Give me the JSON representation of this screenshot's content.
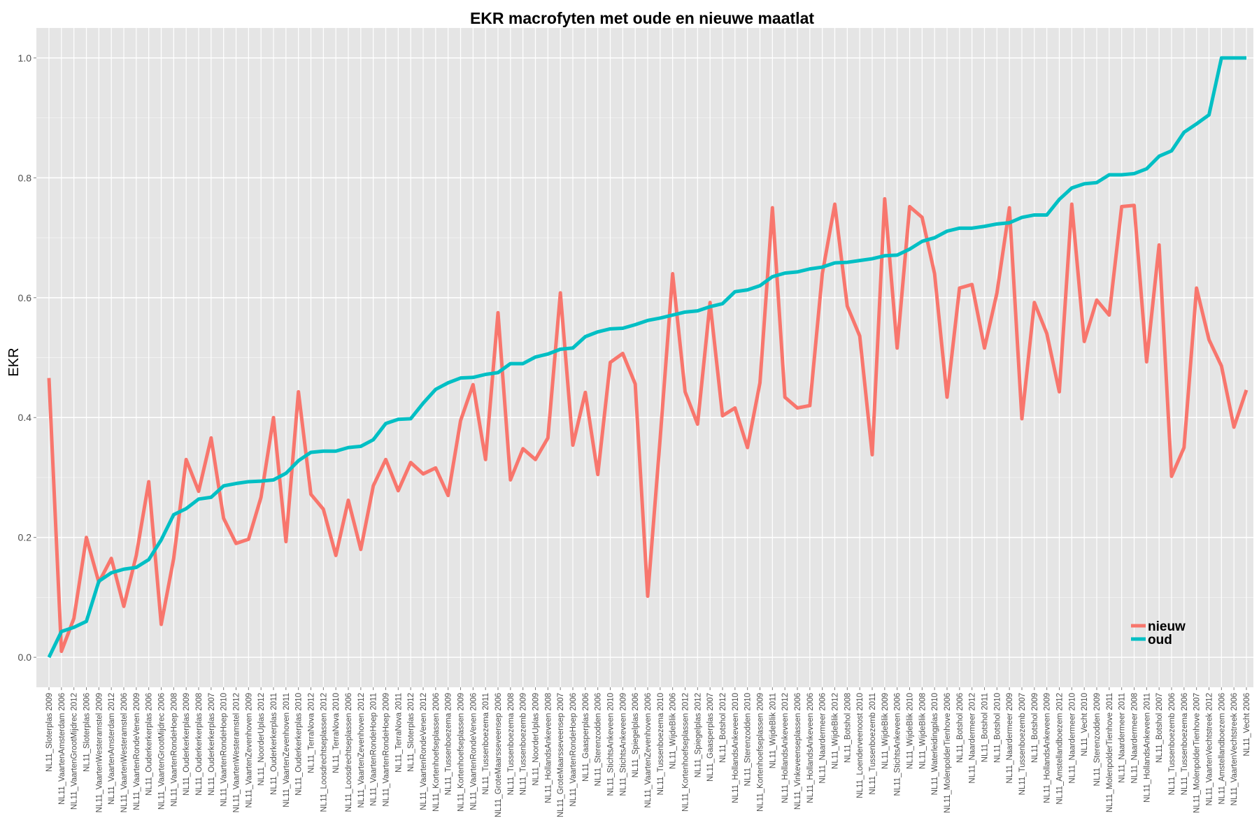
{
  "chart_data": {
    "type": "line",
    "title": "EKR macrofyten met oude en nieuwe maatlat",
    "xlabel": "",
    "ylabel": "EKR",
    "ylim": [
      -0.05,
      1.05
    ],
    "yticks": [
      0.0,
      0.2,
      0.4,
      0.6,
      0.8,
      1.0
    ],
    "ytick_labels": [
      "0.0",
      "0.2",
      "0.4",
      "0.6",
      "0.8",
      "1.0"
    ],
    "grid": true,
    "legend_position": "bottom-right",
    "categories": [
      "NL11_Sloterplas 2009",
      "NL11_VaartenAmsterdam 2006",
      "NL11_VaartenGrootMijdrec 2012",
      "NL11_Sloterplas 2006",
      "NL11_VaartenWesteramstel 2009",
      "NL11_VaartenAmsterdam 2012",
      "NL11_VaartenWesteramstel 2006",
      "NL11_VaartenRondeVenen 2009",
      "NL11_Ouderkerkerplas 2006",
      "NL11_VaartenGrootMijdrec 2006",
      "NL11_VaartenRondeHoep 2008",
      "NL11_Ouderkerkerplas 2009",
      "NL11_Ouderkerkerplas 2008",
      "NL11_Ouderkerkerplas 2007",
      "NL11_VaartenRondeHoep 2010",
      "NL11_VaartenWesteramstel 2012",
      "NL11_VaartenZevenhoven 2009",
      "NL11_NoorderUplas 2012",
      "NL11_Ouderkerkerplas 2011",
      "NL11_VaartenZevenhoven 2011",
      "NL11_Ouderkerkerplas 2010",
      "NL11_TerraNova 2012",
      "NL11_Loosdrechtseplassen 2012",
      "NL11_TerraNova 2010",
      "NL11_Loosdrechtseplassen 2006",
      "NL11_VaartenZevenhoven 2012",
      "NL11_VaartenRondeHoep 2011",
      "NL11_VaartenRondeHoep 2009",
      "NL11_TerraNova 2011",
      "NL11_Sloterplas 2012",
      "NL11_VaartenRondeVenen 2012",
      "NL11_Kortenhoefseplassen 2006",
      "NL11_Tussenboezema 2009",
      "NL11_Kortenhoefseplassen 2009",
      "NL11_VaartenRondeVenen 2006",
      "NL11_Tussenboezema 2011",
      "NL11_GroteMaarsseveensep 2006",
      "NL11_Tussenboezema 2008",
      "NL11_Tussenboezemb 2009",
      "NL11_NoorderUplas 2009",
      "NL11_HollandsAnkeveen 2008",
      "NL11_GroteMaarsseveensep 2007",
      "NL11_VaartenRondeHoep 2006",
      "NL11_Gaasperplas 2006",
      "NL11_Sterenzodden 2006",
      "NL11_StichtsAnkeveen 2010",
      "NL11_StichtsAnkeveen 2009",
      "NL11_Spiegelplas 2006",
      "NL11_VaartenZevenhoven 2006",
      "NL11_Tussenboezema 2010",
      "NL11_WijdeBlik 2006",
      "NL11_Kortenhoefseplassen 2012",
      "NL11_Spiegelplas 2012",
      "NL11_Gaasperplas 2007",
      "NL11_Botshol 2012",
      "NL11_HollandsAnkeveen 2010",
      "NL11_Sterenzodden 2010",
      "NL11_Kortenhoefseplassen 2009",
      "NL11_WijdeBlik 2011",
      "NL11_HollandsAnkeveen 2012",
      "NL11_Vinkeveenseplassen 2006",
      "NL11_HollandsAnkeveen 2006",
      "NL11_Naardermeer 2006",
      "NL11_WijdeBlik 2012",
      "NL11_Botshol 2008",
      "NL11_Loenderveenoost 2010",
      "NL11_Tussenboezemb 2011",
      "NL11_WijdeBlik 2009",
      "NL11_StichtsAnkeveen 2006",
      "NL11_WijdeBlik 2010",
      "NL11_WijdeBlik 2008",
      "NL11_Waterleidingplas 2010",
      "NL11_MolenpolderTienhove 2006",
      "NL11_Botshol 2006",
      "NL11_Naardermeer 2012",
      "NL11_Botshol 2011",
      "NL11_Botshol 2010",
      "NL11_Naardermeer 2009",
      "NL11_Tussenboezemb 2007",
      "NL11_Botshol 2009",
      "NL11_HollandsAnkeveen 2009",
      "NL11_Amstellandboezem 2012",
      "NL11_Naardermeer 2010",
      "NL11_Vecht 2010",
      "NL11_Sterenzodden 2009",
      "NL11_MolenpolderTienhove 2011",
      "NL11_Naardermeer 2011",
      "NL11_Naardermeer 2008",
      "NL11_HollandsAnkeveen 2011",
      "NL11_Botshol 2007",
      "NL11_Tussenboezemb 2006",
      "NL11_Tussenboezema 2006",
      "NL11_MolenpolderTienhove 2007",
      "NL11_VaartenVechtstreek 2012",
      "NL11_Amstellandboezem 2006",
      "NL11_VaartenVechtstreek 2006",
      "NL11_Vecht 2006"
    ],
    "series": [
      {
        "name": "nieuw",
        "color": "#F8766D",
        "values": [
          0.466,
          0.01,
          0.065,
          0.2,
          0.125,
          0.165,
          0.085,
          0.17,
          0.293,
          0.055,
          0.165,
          0.33,
          0.277,
          0.366,
          0.232,
          0.19,
          0.197,
          0.267,
          0.4,
          0.193,
          0.443,
          0.272,
          0.247,
          0.17,
          0.262,
          0.18,
          0.286,
          0.33,
          0.278,
          0.325,
          0.306,
          0.316,
          0.27,
          0.395,
          0.455,
          0.33,
          0.575,
          0.296,
          0.348,
          0.33,
          0.366,
          0.608,
          0.354,
          0.442,
          0.305,
          0.492,
          0.507,
          0.456,
          0.102,
          0.365,
          0.64,
          0.443,
          0.389,
          0.592,
          0.403,
          0.416,
          0.35,
          0.458,
          0.75,
          0.434,
          0.416,
          0.42,
          0.64,
          0.756,
          0.586,
          0.536,
          0.338,
          0.765,
          0.516,
          0.752,
          0.734,
          0.64,
          0.434,
          0.616,
          0.622,
          0.516,
          0.608,
          0.75,
          0.398,
          0.592,
          0.54,
          0.443,
          0.756,
          0.527,
          0.596,
          0.571,
          0.752,
          0.754,
          0.493,
          0.688,
          0.302,
          0.35,
          0.616,
          0.53,
          0.486,
          0.384,
          0.446
        ]
      },
      {
        "name": "oud",
        "color": "#00BFC4",
        "values": [
          0.0,
          0.043,
          0.05,
          0.06,
          0.127,
          0.141,
          0.147,
          0.15,
          0.163,
          0.196,
          0.238,
          0.248,
          0.264,
          0.267,
          0.286,
          0.29,
          0.293,
          0.294,
          0.296,
          0.307,
          0.328,
          0.342,
          0.344,
          0.344,
          0.35,
          0.352,
          0.363,
          0.39,
          0.397,
          0.398,
          0.424,
          0.447,
          0.458,
          0.466,
          0.467,
          0.472,
          0.475,
          0.49,
          0.49,
          0.501,
          0.506,
          0.514,
          0.516,
          0.535,
          0.543,
          0.548,
          0.549,
          0.555,
          0.562,
          0.566,
          0.571,
          0.576,
          0.578,
          0.585,
          0.59,
          0.61,
          0.613,
          0.62,
          0.635,
          0.641,
          0.643,
          0.648,
          0.651,
          0.658,
          0.659,
          0.662,
          0.665,
          0.67,
          0.671,
          0.681,
          0.694,
          0.7,
          0.711,
          0.716,
          0.716,
          0.719,
          0.723,
          0.725,
          0.734,
          0.738,
          0.738,
          0.764,
          0.783,
          0.79,
          0.792,
          0.805,
          0.805,
          0.807,
          0.815,
          0.836,
          0.845,
          0.876,
          0.89,
          0.905,
          1.0,
          1.0,
          1.0
        ]
      }
    ]
  }
}
